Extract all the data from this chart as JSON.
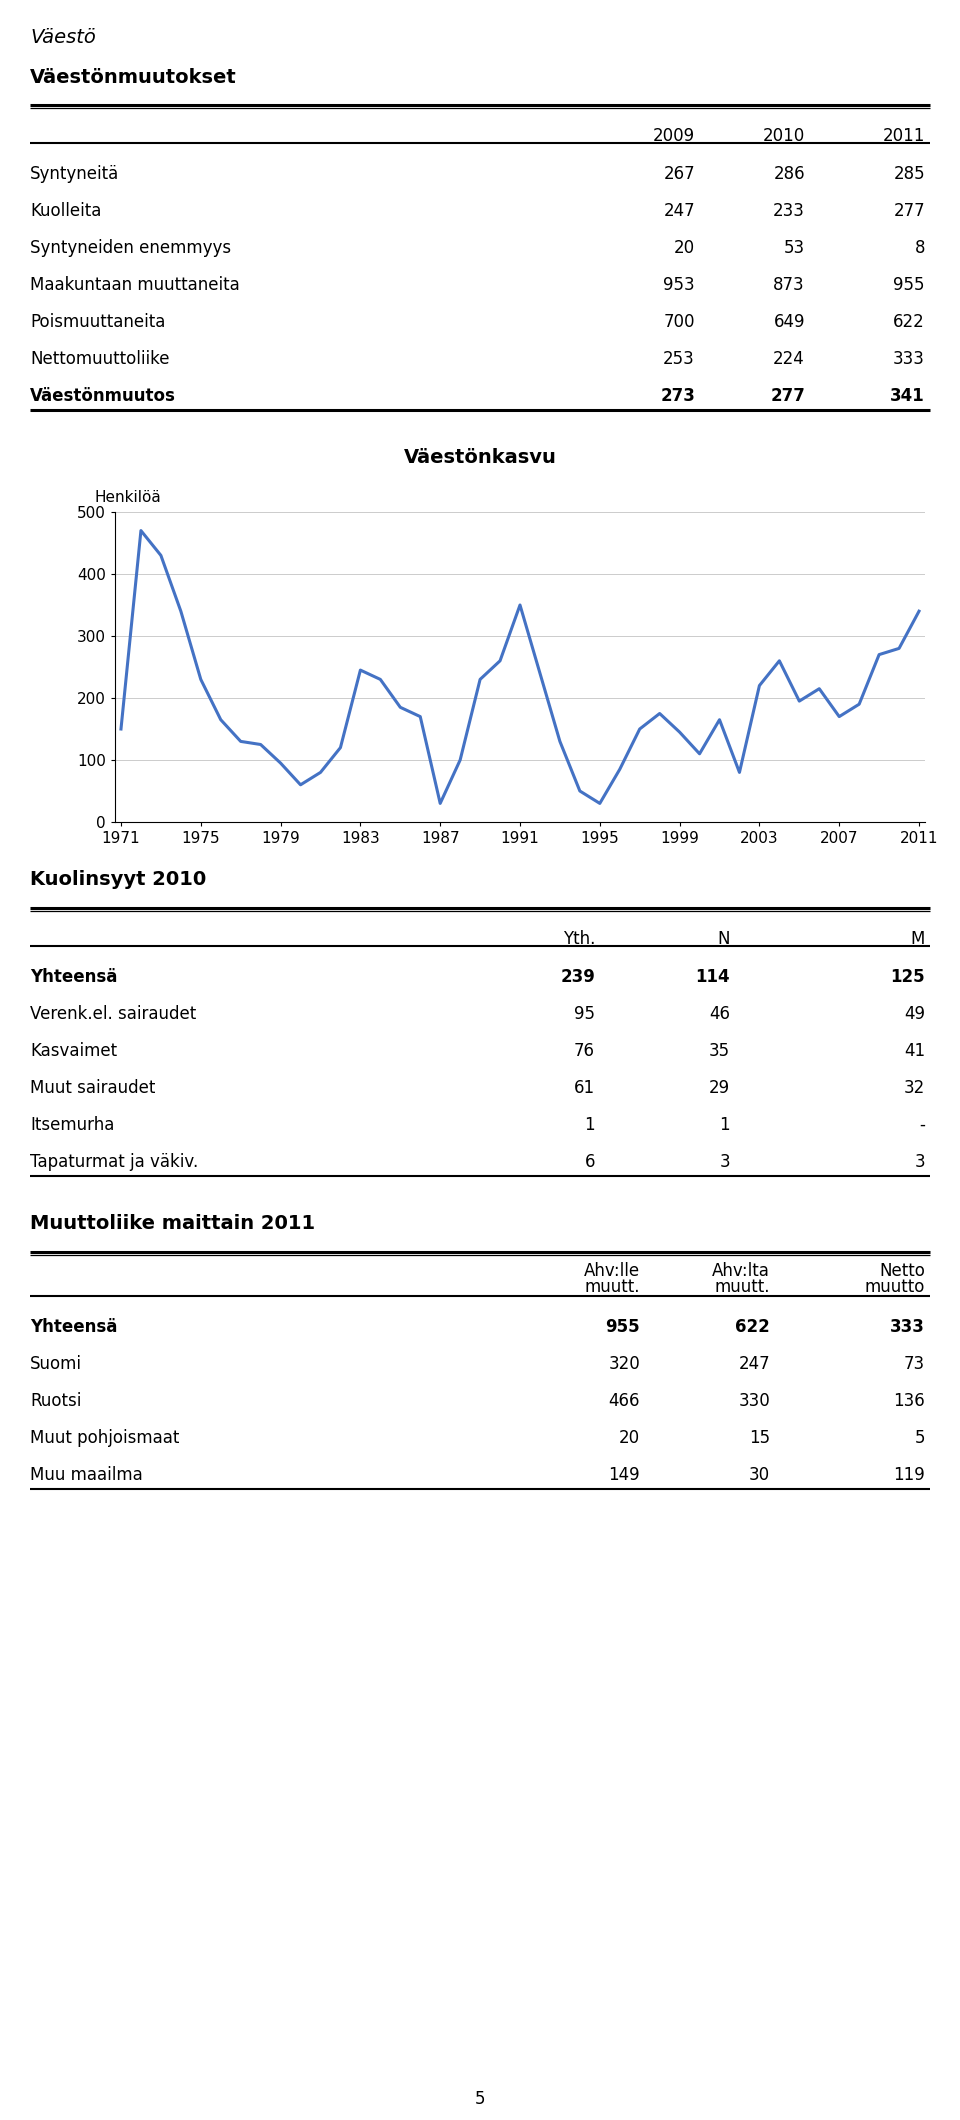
{
  "page_title": "Väestö",
  "section1_title": "Väestönmuutokset",
  "table1_headers": [
    "",
    "2009",
    "2010",
    "2011"
  ],
  "table1_rows": [
    [
      "Syntyneitä",
      "267",
      "286",
      "285"
    ],
    [
      "Kuolleita",
      "247",
      "233",
      "277"
    ],
    [
      "Syntyneiden enemmyys",
      "20",
      "53",
      "8"
    ],
    [
      "Maakuntaan muuttaneita",
      "953",
      "873",
      "955"
    ],
    [
      "Poismuuttaneita",
      "700",
      "649",
      "622"
    ],
    [
      "Nettomuuttoliike",
      "253",
      "224",
      "333"
    ],
    [
      "Väestönmuutos",
      "273",
      "277",
      "341"
    ]
  ],
  "table1_bold_rows": [
    6
  ],
  "chart_title": "Väestönkasvu",
  "chart_ylabel": "Henkilöä",
  "chart_years": [
    1971,
    1972,
    1973,
    1974,
    1975,
    1976,
    1977,
    1978,
    1979,
    1980,
    1981,
    1982,
    1983,
    1984,
    1985,
    1986,
    1987,
    1988,
    1989,
    1990,
    1991,
    1992,
    1993,
    1994,
    1995,
    1996,
    1997,
    1998,
    1999,
    2000,
    2001,
    2002,
    2003,
    2004,
    2005,
    2006,
    2007,
    2008,
    2009,
    2010,
    2011
  ],
  "chart_values": [
    150,
    470,
    430,
    340,
    230,
    165,
    130,
    125,
    95,
    60,
    80,
    120,
    245,
    230,
    185,
    170,
    30,
    100,
    230,
    260,
    350,
    240,
    130,
    50,
    30,
    85,
    150,
    175,
    145,
    110,
    165,
    80,
    220,
    260,
    195,
    215,
    170,
    190,
    270,
    280,
    340
  ],
  "chart_color": "#4472C4",
  "chart_xticks": [
    1971,
    1975,
    1979,
    1983,
    1987,
    1991,
    1995,
    1999,
    2003,
    2007,
    2011
  ],
  "chart_ylim": [
    0,
    500
  ],
  "chart_yticks": [
    0,
    100,
    200,
    300,
    400,
    500
  ],
  "section2_title": "Kuolinsyyt 2010",
  "table2_headers": [
    "",
    "Yth.",
    "N",
    "M"
  ],
  "table2_rows": [
    [
      "Yhteensä",
      "239",
      "114",
      "125"
    ],
    [
      "Verenk.el. sairaudet",
      "95",
      "46",
      "49"
    ],
    [
      "Kasvaimet",
      "76",
      "35",
      "41"
    ],
    [
      "Muut sairaudet",
      "61",
      "29",
      "32"
    ],
    [
      "Itsemurha",
      "1",
      "1",
      "-"
    ],
    [
      "Tapaturmat ja väkiv.",
      "6",
      "3",
      "3"
    ]
  ],
  "table2_bold_rows": [
    0
  ],
  "section3_title": "Muuttoliike maittain 2011",
  "table3_headers_line1": [
    "",
    "Ahv:lle",
    "Ahv:lta",
    "Netto"
  ],
  "table3_headers_line2": [
    "",
    "muutt.",
    "muutt.",
    "muutto"
  ],
  "table3_rows": [
    [
      "Yhteensä",
      "955",
      "622",
      "333"
    ],
    [
      "Suomi",
      "320",
      "247",
      "73"
    ],
    [
      "Ruotsi",
      "466",
      "330",
      "136"
    ],
    [
      "Muut pohjoismaat",
      "20",
      "15",
      "5"
    ],
    [
      "Muu maailma",
      "149",
      "30",
      "119"
    ]
  ],
  "table3_bold_rows": [
    0
  ],
  "page_number": "5",
  "background_color": "#ffffff",
  "text_color": "#000000"
}
